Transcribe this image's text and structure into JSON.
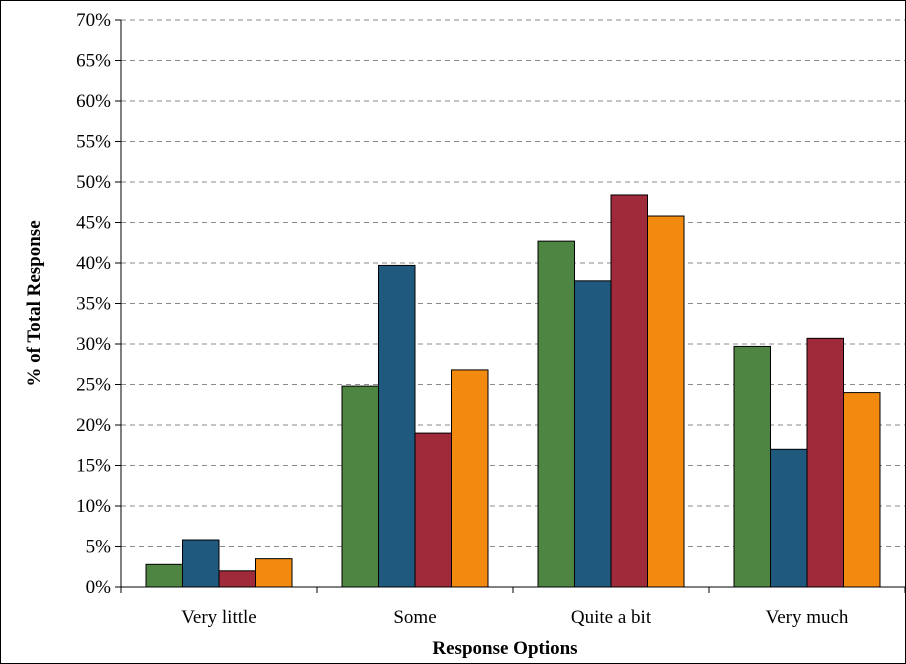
{
  "chart_data": {
    "type": "bar",
    "title": "",
    "xlabel": "Response Options",
    "ylabel": "% of Total Response",
    "ylim": [
      0,
      70
    ],
    "ytick_step": 5,
    "ytick_suffix": "%",
    "grid": true,
    "legend": "none",
    "categories": [
      "Very little",
      "Some",
      "Quite a bit",
      "Very much"
    ],
    "series": [
      {
        "color": "#4e8542",
        "values": [
          2.8,
          24.8,
          42.7,
          29.7
        ]
      },
      {
        "color": "#1f5a7e",
        "values": [
          5.8,
          39.7,
          37.8,
          17.0
        ]
      },
      {
        "color": "#9e2a3a",
        "values": [
          2.0,
          19.0,
          48.4,
          30.7
        ]
      },
      {
        "color": "#f28a0f",
        "values": [
          3.5,
          26.8,
          45.8,
          24.0
        ]
      }
    ]
  }
}
